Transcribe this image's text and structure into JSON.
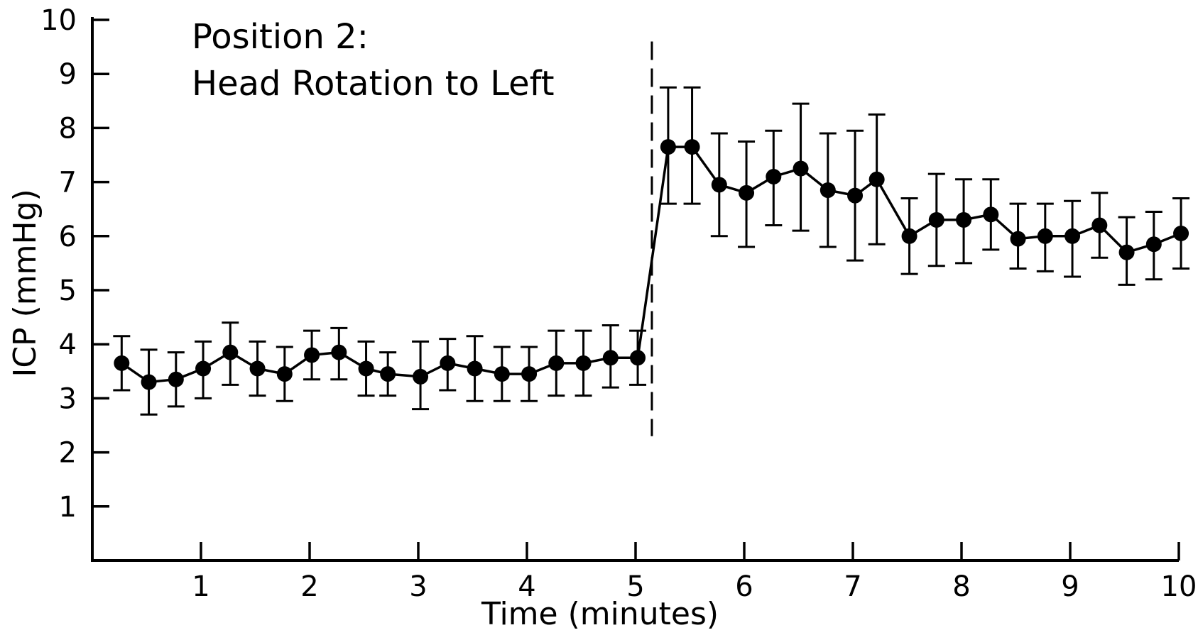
{
  "chart_data": {
    "type": "line",
    "title": "",
    "xlabel": "Time (minutes)",
    "ylabel": "ICP (mmHg)",
    "xlim": [
      0,
      10
    ],
    "ylim": [
      0,
      10
    ],
    "xticks": [
      1,
      2,
      3,
      4,
      5,
      6,
      7,
      8,
      9,
      10
    ],
    "xtick_labels": [
      "1",
      "2",
      "3",
      "4",
      "5",
      "6",
      "7",
      "8",
      "9",
      "10"
    ],
    "yticks": [
      1,
      2,
      3,
      4,
      5,
      6,
      7,
      8,
      9,
      10
    ],
    "ytick_labels": [
      "1",
      "2",
      "3",
      "4",
      "5",
      "6",
      "7",
      "8",
      "9",
      "10"
    ],
    "grid": false,
    "annotations": {
      "line1": "Position 2:",
      "line2": "Head Rotation to Left"
    },
    "vertical_marker_x": 5.15,
    "series": [
      {
        "x": [
          0.27,
          0.52,
          0.77,
          1.02,
          1.27,
          1.52,
          1.77,
          2.02,
          2.27,
          2.52,
          2.72,
          3.02,
          3.27,
          3.52,
          3.77,
          4.02,
          4.27,
          4.52,
          4.77,
          5.02,
          5.3,
          5.52,
          5.77,
          6.02,
          6.27,
          6.52,
          6.77,
          7.02,
          7.22,
          7.52,
          7.77,
          8.02,
          8.27,
          8.52,
          8.77,
          9.02,
          9.27,
          9.52,
          9.77,
          10.02
        ],
        "values": [
          3.65,
          3.3,
          3.35,
          3.55,
          3.85,
          3.55,
          3.45,
          3.8,
          3.85,
          3.55,
          3.45,
          3.4,
          3.65,
          3.55,
          3.45,
          3.45,
          3.65,
          3.65,
          3.75,
          3.75,
          7.65,
          7.65,
          6.95,
          6.8,
          7.1,
          7.25,
          6.85,
          6.75,
          7.05,
          6.0,
          6.3,
          6.3,
          6.4,
          5.95,
          6.0,
          6.0,
          6.2,
          5.7,
          5.85,
          6.05
        ],
        "error_low": [
          3.15,
          2.7,
          2.85,
          3.0,
          3.25,
          3.05,
          2.95,
          3.35,
          3.35,
          3.05,
          3.05,
          2.8,
          3.15,
          2.95,
          2.95,
          2.95,
          3.05,
          3.05,
          3.2,
          3.25,
          6.6,
          6.6,
          6.0,
          5.8,
          6.2,
          6.1,
          5.8,
          5.55,
          5.85,
          5.3,
          5.45,
          5.5,
          5.75,
          5.4,
          5.35,
          5.25,
          5.6,
          5.1,
          5.2,
          5.4
        ],
        "error_high": [
          4.15,
          3.9,
          3.85,
          4.05,
          4.4,
          4.05,
          3.95,
          4.25,
          4.3,
          4.05,
          3.85,
          4.05,
          4.1,
          4.15,
          3.95,
          3.95,
          4.25,
          4.25,
          4.35,
          4.25,
          8.75,
          8.75,
          7.9,
          7.75,
          7.95,
          8.45,
          7.9,
          7.95,
          8.25,
          6.7,
          7.15,
          7.05,
          7.05,
          6.6,
          6.6,
          6.65,
          6.8,
          6.35,
          6.45,
          6.7
        ]
      }
    ]
  }
}
